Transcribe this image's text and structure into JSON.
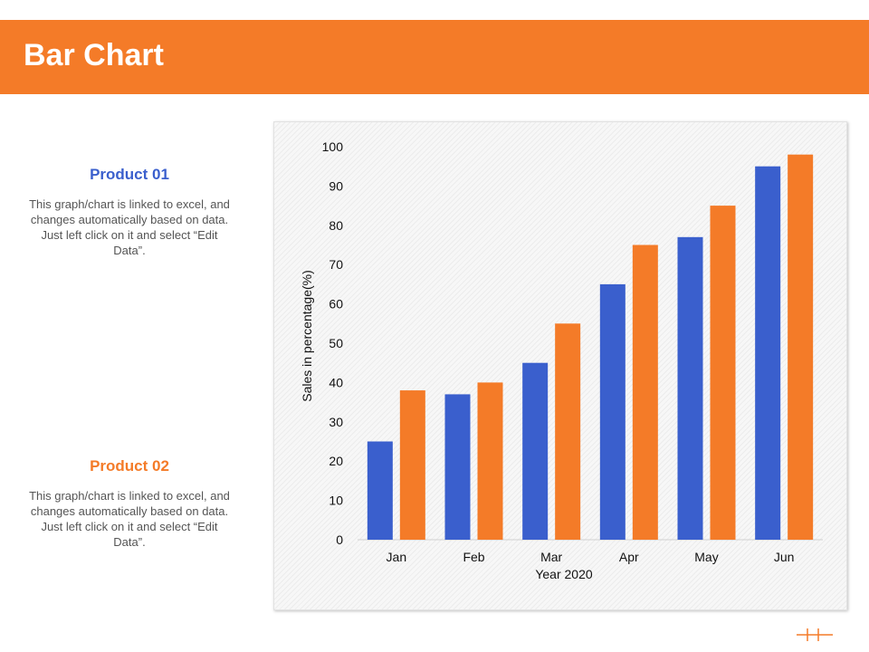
{
  "page": {
    "title": "Bar Chart"
  },
  "products": [
    {
      "title": "Product 01",
      "description": "This graph/chart is linked to excel, and changes automatically based on data. Just left click on it and select “Edit Data”.",
      "color": "#3a5fcd"
    },
    {
      "title": "Product 02",
      "description": "This graph/chart is linked to excel, and changes automatically based on data. Just left click on it and select “Edit Data”.",
      "color": "#f47b28"
    }
  ],
  "colors": {
    "accent": "#f47b28",
    "series1": "#3a5fcd",
    "series2": "#f47b28"
  },
  "chart_data": {
    "type": "bar",
    "categories": [
      "Jan",
      "Feb",
      "Mar",
      "Apr",
      "May",
      "Jun"
    ],
    "series": [
      {
        "values": [
          25,
          37,
          45,
          65,
          77,
          95
        ],
        "color": "#3a5fcd"
      },
      {
        "values": [
          38,
          40,
          55,
          75,
          85,
          98
        ],
        "color": "#f47b28"
      }
    ],
    "xlabel": "Year 2020",
    "ylabel": "Sales in percentage(%)",
    "ylim": [
      0,
      100
    ],
    "yticks": [
      0,
      10,
      20,
      30,
      40,
      50,
      60,
      70,
      80,
      90,
      100
    ],
    "grid": false,
    "legend": "none"
  }
}
